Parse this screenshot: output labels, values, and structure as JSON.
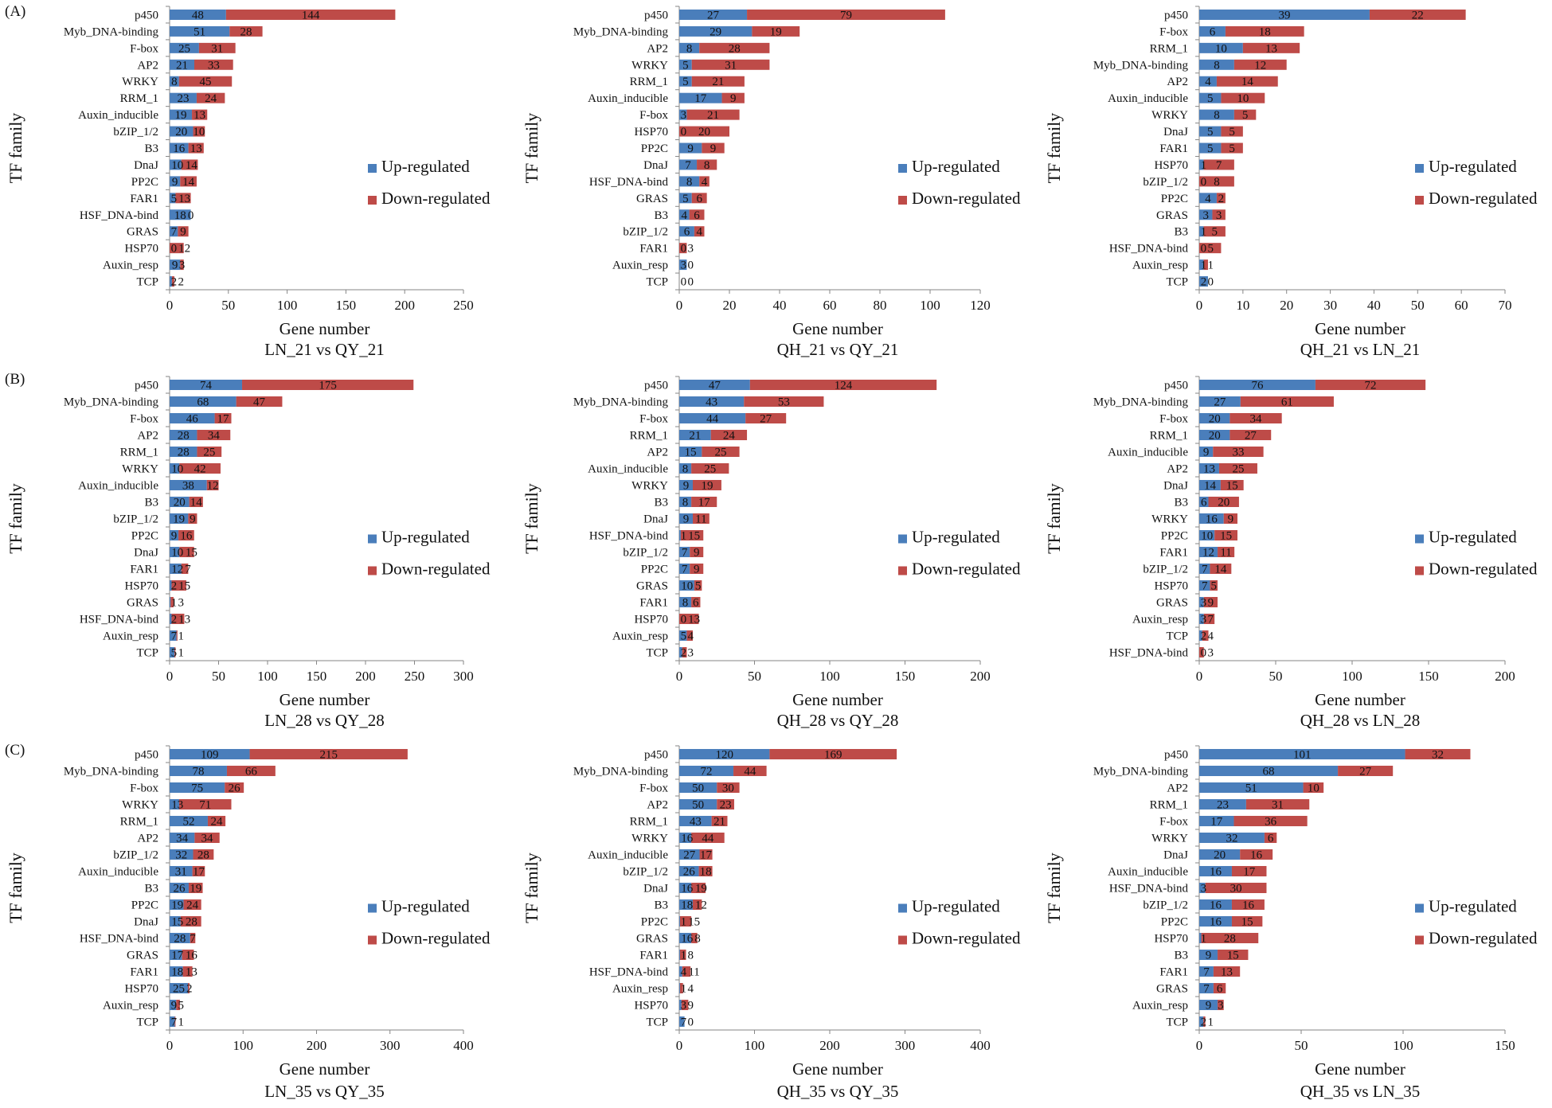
{
  "figure": {
    "panel_labels": [
      "(A)",
      "(B)",
      "(C)"
    ]
  },
  "colors": {
    "up": "#4A7EBB",
    "down": "#BE4B48",
    "axis": "#868686",
    "text": "#111111"
  },
  "chart_data": [
    {
      "type": "bar",
      "orientation": "horizontal",
      "stacked": true,
      "title": "LN_21 vs QY_21",
      "xlabel": "Gene number",
      "ylabel": "TF family",
      "xlim": [
        0,
        250
      ],
      "xticks": [
        0,
        50,
        100,
        150,
        200,
        250
      ],
      "legend": [
        "Up-regulated",
        "Down-regulated"
      ],
      "legend_position": "right",
      "categories": [
        "p450",
        "Myb_DNA-binding",
        "F-box",
        "AP2",
        "WRKY",
        "RRM_1",
        "Auxin_inducible",
        "bZIP_1/2",
        "B3",
        "DnaJ",
        "PP2C",
        "FAR1",
        "HSF_DNA-bind",
        "GRAS",
        "HSP70",
        "Auxin_resp",
        "TCP"
      ],
      "series": [
        {
          "name": "Up-regulated",
          "values": [
            48,
            51,
            25,
            21,
            8,
            23,
            19,
            20,
            16,
            10,
            9,
            5,
            18,
            7,
            0,
            9,
            2
          ]
        },
        {
          "name": "Down-regulated",
          "values": [
            144,
            28,
            31,
            33,
            45,
            24,
            13,
            10,
            13,
            14,
            14,
            13,
            0,
            9,
            12,
            3,
            2
          ]
        }
      ]
    },
    {
      "type": "bar",
      "orientation": "horizontal",
      "stacked": true,
      "title": "QH_21 vs QY_21",
      "xlabel": "Gene number",
      "ylabel": "TF family",
      "xlim": [
        0,
        120
      ],
      "xticks": [
        0,
        20,
        40,
        60,
        80,
        100,
        120
      ],
      "legend": [
        "Up-regulated",
        "Down-regulated"
      ],
      "legend_position": "right",
      "categories": [
        "p450",
        "Myb_DNA-binding",
        "AP2",
        "WRKY",
        "RRM_1",
        "Auxin_inducible",
        "F-box",
        "HSP70",
        "PP2C",
        "DnaJ",
        "HSF_DNA-bind",
        "GRAS",
        "B3",
        "bZIP_1/2",
        "FAR1",
        "Auxin_resp",
        "TCP"
      ],
      "series": [
        {
          "name": "Up-regulated",
          "values": [
            27,
            29,
            8,
            5,
            5,
            17,
            3,
            0,
            9,
            7,
            8,
            5,
            4,
            6,
            0,
            3,
            0
          ]
        },
        {
          "name": "Down-regulated",
          "values": [
            79,
            19,
            28,
            31,
            21,
            9,
            21,
            20,
            9,
            8,
            4,
            6,
            6,
            4,
            3,
            0,
            0
          ]
        }
      ]
    },
    {
      "type": "bar",
      "orientation": "horizontal",
      "stacked": true,
      "title": "QH_21 vs LN_21",
      "xlabel": "Gene number",
      "ylabel": "TF family",
      "xlim": [
        0,
        70
      ],
      "xticks": [
        0,
        10,
        20,
        30,
        40,
        50,
        60,
        70
      ],
      "legend": [
        "Up-regulated",
        "Down-regulated"
      ],
      "legend_position": "right",
      "categories": [
        "p450",
        "F-box",
        "RRM_1",
        "Myb_DNA-binding",
        "AP2",
        "Auxin_inducible",
        "WRKY",
        "DnaJ",
        "FAR1",
        "HSP70",
        "bZIP_1/2",
        "PP2C",
        "GRAS",
        "B3",
        "HSF_DNA-bind",
        "Auxin_resp",
        "TCP"
      ],
      "series": [
        {
          "name": "Up-regulated",
          "values": [
            39,
            6,
            10,
            8,
            4,
            5,
            8,
            5,
            5,
            1,
            0,
            4,
            3,
            1,
            0,
            1,
            2
          ]
        },
        {
          "name": "Down-regulated",
          "values": [
            22,
            18,
            13,
            12,
            14,
            10,
            5,
            5,
            5,
            7,
            8,
            2,
            3,
            5,
            5,
            1,
            0
          ]
        }
      ]
    },
    {
      "type": "bar",
      "orientation": "horizontal",
      "stacked": true,
      "title": "LN_28 vs QY_28",
      "xlabel": "Gene number",
      "ylabel": "TF family",
      "xlim": [
        0,
        300
      ],
      "xticks": [
        0,
        50,
        100,
        150,
        200,
        250,
        300
      ],
      "legend": [
        "Up-regulated",
        "Down-regulated"
      ],
      "legend_position": "right",
      "categories": [
        "p450",
        "Myb_DNA-binding",
        "F-box",
        "AP2",
        "RRM_1",
        "WRKY",
        "Auxin_inducible",
        "B3",
        "bZIP_1/2",
        "PP2C",
        "DnaJ",
        "FAR1",
        "HSP70",
        "GRAS",
        "HSF_DNA-bind",
        "Auxin_resp",
        "TCP"
      ],
      "series": [
        {
          "name": "Up-regulated",
          "values": [
            74,
            68,
            46,
            28,
            28,
            10,
            38,
            20,
            19,
            9,
            10,
            12,
            2,
            1,
            2,
            7,
            5
          ]
        },
        {
          "name": "Down-regulated",
          "values": [
            175,
            47,
            17,
            34,
            25,
            42,
            12,
            14,
            9,
            16,
            15,
            7,
            15,
            3,
            13,
            1,
            1
          ]
        }
      ]
    },
    {
      "type": "bar",
      "orientation": "horizontal",
      "stacked": true,
      "title": "QH_28 vs QY_28",
      "xlabel": "Gene number",
      "ylabel": "TF family",
      "xlim": [
        0,
        200
      ],
      "xticks": [
        0,
        50,
        100,
        150,
        200
      ],
      "legend": [
        "Up-regulated",
        "Down-regulated"
      ],
      "legend_position": "right",
      "categories": [
        "p450",
        "Myb_DNA-binding",
        "F-box",
        "RRM_1",
        "AP2",
        "Auxin_inducible",
        "WRKY",
        "B3",
        "DnaJ",
        "HSF_DNA-bind",
        "bZIP_1/2",
        "PP2C",
        "GRAS",
        "FAR1",
        "HSP70",
        "Auxin_resp",
        "TCP"
      ],
      "series": [
        {
          "name": "Up-regulated",
          "values": [
            47,
            43,
            44,
            21,
            15,
            8,
            9,
            8,
            9,
            1,
            7,
            7,
            10,
            8,
            0,
            5,
            2
          ]
        },
        {
          "name": "Down-regulated",
          "values": [
            124,
            53,
            27,
            24,
            25,
            25,
            19,
            17,
            11,
            15,
            9,
            9,
            5,
            6,
            13,
            4,
            3
          ]
        }
      ]
    },
    {
      "type": "bar",
      "orientation": "horizontal",
      "stacked": true,
      "title": "QH_28 vs LN_28",
      "xlabel": "Gene number",
      "ylabel": "TF family",
      "xlim": [
        0,
        200
      ],
      "xticks": [
        0,
        50,
        100,
        150,
        200
      ],
      "legend": [
        "Up-regulated",
        "Down-regulated"
      ],
      "legend_position": "right",
      "categories": [
        "p450",
        "Myb_DNA-binding",
        "F-box",
        "RRM_1",
        "Auxin_inducible",
        "AP2",
        "DnaJ",
        "B3",
        "WRKY",
        "PP2C",
        "FAR1",
        "bZIP_1/2",
        "HSP70",
        "GRAS",
        "Auxin_resp",
        "TCP",
        "HSF_DNA-bind"
      ],
      "series": [
        {
          "name": "Up-regulated",
          "values": [
            76,
            27,
            20,
            20,
            9,
            13,
            14,
            6,
            16,
            10,
            12,
            7,
            7,
            3,
            3,
            2,
            0
          ]
        },
        {
          "name": "Down-regulated",
          "values": [
            72,
            61,
            34,
            27,
            33,
            25,
            15,
            20,
            9,
            15,
            11,
            14,
            5,
            9,
            7,
            4,
            3
          ]
        }
      ]
    },
    {
      "type": "bar",
      "orientation": "horizontal",
      "stacked": true,
      "title": "LN_35 vs QY_35",
      "xlabel": "Gene number",
      "ylabel": "TF family",
      "xlim": [
        0,
        400
      ],
      "xticks": [
        0,
        100,
        200,
        300,
        400
      ],
      "legend": [
        "Up-regulated",
        "Down-regulated"
      ],
      "legend_position": "right",
      "categories": [
        "p450",
        "Myb_DNA-binding",
        "F-box",
        "WRKY",
        "RRM_1",
        "AP2",
        "bZIP_1/2",
        "Auxin_inducible",
        "B3",
        "PP2C",
        "DnaJ",
        "HSF_DNA-bind",
        "GRAS",
        "FAR1",
        "HSP70",
        "Auxin_resp",
        "TCP"
      ],
      "series": [
        {
          "name": "Up-regulated",
          "values": [
            109,
            78,
            75,
            13,
            52,
            34,
            32,
            31,
            26,
            19,
            15,
            28,
            17,
            18,
            25,
            9,
            7
          ]
        },
        {
          "name": "Down-regulated",
          "values": [
            215,
            66,
            26,
            71,
            24,
            34,
            28,
            17,
            19,
            24,
            28,
            7,
            16,
            13,
            2,
            5,
            1
          ]
        }
      ]
    },
    {
      "type": "bar",
      "orientation": "horizontal",
      "stacked": true,
      "title": "QH_35 vs QY_35",
      "xlabel": "Gene number",
      "ylabel": "TF family",
      "xlim": [
        0,
        400
      ],
      "xticks": [
        0,
        100,
        200,
        300,
        400
      ],
      "legend": [
        "Up-regulated",
        "Down-regulated"
      ],
      "legend_position": "right",
      "categories": [
        "p450",
        "Myb_DNA-binding",
        "F-box",
        "AP2",
        "RRM_1",
        "WRKY",
        "Auxin_inducible",
        "bZIP_1/2",
        "DnaJ",
        "B3",
        "PP2C",
        "GRAS",
        "FAR1",
        "HSF_DNA-bind",
        "Auxin_resp",
        "HSP70",
        "TCP"
      ],
      "series": [
        {
          "name": "Up-regulated",
          "values": [
            120,
            72,
            50,
            50,
            43,
            16,
            27,
            26,
            16,
            18,
            1,
            16,
            1,
            4,
            1,
            3,
            7
          ]
        },
        {
          "name": "Down-regulated",
          "values": [
            169,
            44,
            30,
            23,
            21,
            44,
            17,
            18,
            19,
            12,
            15,
            8,
            8,
            11,
            4,
            9,
            0
          ]
        }
      ]
    },
    {
      "type": "bar",
      "orientation": "horizontal",
      "stacked": true,
      "title": "QH_35 vs LN_35",
      "xlabel": "Gene number",
      "ylabel": "TF family",
      "xlim": [
        0,
        150
      ],
      "xticks": [
        0,
        50,
        100,
        150
      ],
      "legend": [
        "Up-regulated",
        "Down-regulated"
      ],
      "legend_position": "right",
      "categories": [
        "p450",
        "Myb_DNA-binding",
        "AP2",
        "RRM_1",
        "F-box",
        "WRKY",
        "DnaJ",
        "Auxin_inducible",
        "HSF_DNA-bind",
        "bZIP_1/2",
        "PP2C",
        "HSP70",
        "B3",
        "FAR1",
        "GRAS",
        "Auxin_resp",
        "TCP"
      ],
      "series": [
        {
          "name": "Up-regulated",
          "values": [
            101,
            68,
            51,
            23,
            17,
            32,
            20,
            16,
            3,
            16,
            16,
            1,
            9,
            7,
            7,
            9,
            2
          ]
        },
        {
          "name": "Down-regulated",
          "values": [
            32,
            27,
            10,
            31,
            36,
            6,
            16,
            17,
            30,
            16,
            15,
            28,
            15,
            13,
            6,
            3,
            1
          ]
        }
      ]
    }
  ]
}
